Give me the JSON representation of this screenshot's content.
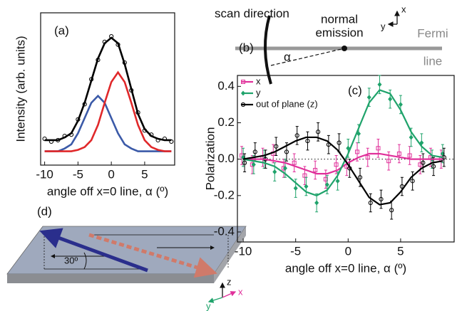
{
  "chart_data": [
    {
      "type": "line",
      "label": "(a)",
      "xlabel": "angle off x=0 line, α (º)",
      "ylabel": "Intensity (arb. units)",
      "xlim": [
        -10.6,
        9.5
      ],
      "ylim": [
        -0.1,
        1.0
      ],
      "xticks": [
        -10,
        -5,
        0,
        5
      ],
      "x": [
        -10,
        -9,
        -8,
        -7,
        -6,
        -5,
        -4,
        -3,
        -2,
        -1,
        0,
        1,
        2,
        3,
        4,
        5,
        6,
        7,
        8,
        9
      ],
      "series": [
        {
          "color": "#3b5aa8",
          "style": "line",
          "values": [
            0,
            0,
            0,
            0.02,
            0.05,
            0.13,
            0.24,
            0.35,
            0.4,
            0.35,
            0.24,
            0.13,
            0.05,
            0.02,
            0,
            0,
            0,
            0,
            0,
            0
          ]
        },
        {
          "color": "#e0282a",
          "style": "line",
          "values": [
            0,
            0,
            0,
            0,
            0,
            0.01,
            0.03,
            0.08,
            0.19,
            0.35,
            0.5,
            0.57,
            0.5,
            0.35,
            0.19,
            0.08,
            0.03,
            0.01,
            0,
            0
          ]
        },
        {
          "color": "#000000",
          "style": "line",
          "values": [
            0.08,
            0.08,
            0.08,
            0.1,
            0.13,
            0.22,
            0.35,
            0.51,
            0.67,
            0.78,
            0.82,
            0.78,
            0.63,
            0.45,
            0.27,
            0.16,
            0.11,
            0.09,
            0.08,
            0.08
          ]
        },
        {
          "color": "#000000",
          "style": "markers",
          "values": [
            0.09,
            0.07,
            0.08,
            0.11,
            0.12,
            0.23,
            0.34,
            0.52,
            0.66,
            0.79,
            0.83,
            0.77,
            0.64,
            0.44,
            0.28,
            0.15,
            0.12,
            0.08,
            0.09,
            0.07
          ]
        }
      ]
    },
    {
      "type": "scatter",
      "label": "(c)",
      "xlabel": "angle off x=0 line, α (º)",
      "ylabel": "Polarization",
      "xlim": [
        -10.55,
        10.1
      ],
      "ylim": [
        -0.455,
        0.46
      ],
      "xticks": [
        -10,
        -5,
        0,
        5
      ],
      "yticks": [
        -0.4,
        -0.2,
        {
          "value": 0,
          "label": "0.0"
        },
        0.2,
        0.4
      ],
      "x": [
        -10,
        -9,
        -8,
        -7,
        -6,
        -5,
        -4,
        -3,
        -2,
        -1,
        0,
        1,
        2,
        3,
        4,
        5,
        6,
        7,
        8,
        9
      ],
      "series": [
        {
          "name": "x",
          "color": "#e0309a",
          "marker": "square",
          "values": [
            0.02,
            -0.03,
            0.01,
            0.03,
            -0.05,
            -0.02,
            -0.09,
            -0.06,
            -0.11,
            -0.03,
            -0.04,
            0.04,
            0.01,
            0.06,
            -0.01,
            0.03,
            0.02,
            -0.03,
            0.01,
            0
          ],
          "errors": [
            0.05,
            0.05,
            0.05,
            0.05,
            0.05,
            0.05,
            0.05,
            0.05,
            0.05,
            0.05,
            0.05,
            0.05,
            0.05,
            0.05,
            0.05,
            0.05,
            0.05,
            0.05,
            0.05,
            0.05
          ],
          "fit": [
            0,
            0,
            0,
            -0.01,
            -0.02,
            -0.04,
            -0.06,
            -0.08,
            -0.08,
            -0.06,
            -0.02,
            0.01,
            0.03,
            0.03,
            0.02,
            0.01,
            0,
            0,
            0,
            0
          ]
        },
        {
          "name": "y",
          "color": "#1fa36b",
          "marker": "diamond",
          "values": [
            0.01,
            -0.03,
            0,
            -0.07,
            -0.05,
            -0.16,
            -0.15,
            -0.24,
            -0.14,
            -0.12,
            0.06,
            0.14,
            0.34,
            0.41,
            0.33,
            0.3,
            0.12,
            0.09,
            0,
            0.03
          ],
          "errors": [
            0.05,
            0.05,
            0.05,
            0.05,
            0.05,
            0.05,
            0.05,
            0.05,
            0.05,
            0.05,
            0.05,
            0.05,
            0.05,
            0.05,
            0.05,
            0.05,
            0.05,
            0.05,
            0.05,
            0.05
          ],
          "fit": [
            0,
            -0.01,
            -0.02,
            -0.04,
            -0.08,
            -0.13,
            -0.18,
            -0.2,
            -0.17,
            -0.09,
            0.03,
            0.17,
            0.31,
            0.38,
            0.36,
            0.27,
            0.15,
            0.07,
            0.02,
            0.01
          ]
        },
        {
          "name": "out of plane (z)",
          "color": "#000000",
          "marker": "circle",
          "values": [
            -0.02,
            0.04,
            0,
            0.07,
            0.04,
            0.13,
            0.1,
            0.15,
            0.08,
            0.09,
            -0.05,
            -0.1,
            -0.24,
            -0.22,
            -0.28,
            -0.15,
            -0.12,
            -0.02,
            -0.04,
            0.01
          ],
          "errors": [
            0.05,
            0.05,
            0.05,
            0.05,
            0.05,
            0.05,
            0.05,
            0.05,
            0.05,
            0.05,
            0.05,
            0.05,
            0.05,
            0.05,
            0.05,
            0.05,
            0.05,
            0.05,
            0.05,
            0.05
          ],
          "fit": [
            0,
            0.01,
            0.02,
            0.04,
            0.07,
            0.1,
            0.12,
            0.12,
            0.1,
            0.05,
            -0.03,
            -0.12,
            -0.21,
            -0.25,
            -0.24,
            -0.18,
            -0.1,
            -0.05,
            -0.02,
            -0.01
          ]
        }
      ]
    }
  ],
  "panel_b": {
    "label": "(b)",
    "scan": "scan direction",
    "normal": [
      "normal",
      "emission"
    ],
    "alpha": "α",
    "fermi": [
      "Fermi",
      "line"
    ],
    "axis_x": "x",
    "axis_y": "y"
  },
  "panel_d": {
    "label": "(d)",
    "angle": "30º",
    "axis_z": "z",
    "axis_y": "y",
    "axis_x": "x"
  }
}
